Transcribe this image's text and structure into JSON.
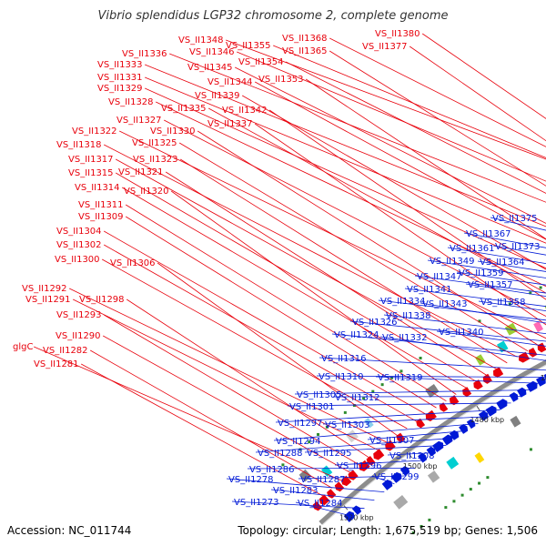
{
  "title": "Vibrio splendidus LGP32 chromosome 2, complete genome",
  "accession": "Accession: NC_011744",
  "summary": "Topology: circular; Length: 1,675,519 bp; Genes: 1,506",
  "colors": {
    "forward_gene": "#e8000b",
    "reverse_gene": "#0019d6",
    "backbone": "#8c8c8c",
    "gc_tick": "#2e8b2e"
  },
  "ticks": [
    {
      "label": "1400 kbp",
      "pos": 1400
    },
    {
      "label": "1420 kbp",
      "pos": 1420
    },
    {
      "label": "1440 kbp",
      "pos": 1440
    },
    {
      "label": "1460 kbp",
      "pos": 1460
    },
    {
      "label": "1480 kbp",
      "pos": 1480
    },
    {
      "label": "1500 kbp",
      "pos": 1500
    },
    {
      "label": "1520 kbp",
      "pos": 1520
    }
  ],
  "forward_labels": [
    "VS_II1348",
    "VS_II1355",
    "VS_II1368",
    "VS_II1380",
    "VS_II1346",
    "VS_II1377",
    "VS_II1336",
    "VS_II1354",
    "VS_II1365",
    "VS_II1333",
    "VS_II1345",
    "VS_II1331",
    "VS_II1344",
    "VS_II1353",
    "VS_II1329",
    "VS_II1339",
    "VS_II1328",
    "VS_II1335",
    "VS_II1342",
    "VS_II1327",
    "VS_II1337",
    "VS_II1322",
    "VS_II1330",
    "VS_II1325",
    "VS_II1318",
    "VS_II1323",
    "VS_II1317",
    "VS_II1321",
    "VS_II1315",
    "VS_II1314",
    "VS_II1320",
    "VS_II1311",
    "VS_II1309",
    "VS_II1304",
    "VS_II1302",
    "VS_II1300",
    "VS_II1306",
    "VS_II1292",
    "VS_II1291",
    "VS_II1298",
    "VS_II1293",
    "VS_II1290",
    "glgC",
    "VS_II1282",
    "VS_II1281"
  ],
  "reverse_labels": [
    "VS_II1375",
    "VS_II1367",
    "VS_II1373",
    "VS_II1361",
    "VS_II1364",
    "VS_II1349",
    "VS_II1359",
    "VS_II1347",
    "VS_II1357",
    "VS_II1341",
    "VS_II1358",
    "VS_II1334",
    "VS_II1343",
    "VS_II1338",
    "VS_II1326",
    "VS_II1340",
    "VS_II1324",
    "VS_II1332",
    "VS_II1316",
    "VS_II1310",
    "VS_II1319",
    "VS_II1305",
    "VS_II1312",
    "VS_II1301",
    "VS_II1297",
    "VS_II1303",
    "VS_II1294",
    "VS_II1307",
    "VS_II1288",
    "VS_II1295",
    "VS_II1308",
    "VS_II1296",
    "VS_II1286",
    "VS_II1287",
    "VS_II1299",
    "VS_II1278",
    "VS_II1283",
    "VS_II1273",
    "VS_II1284"
  ]
}
